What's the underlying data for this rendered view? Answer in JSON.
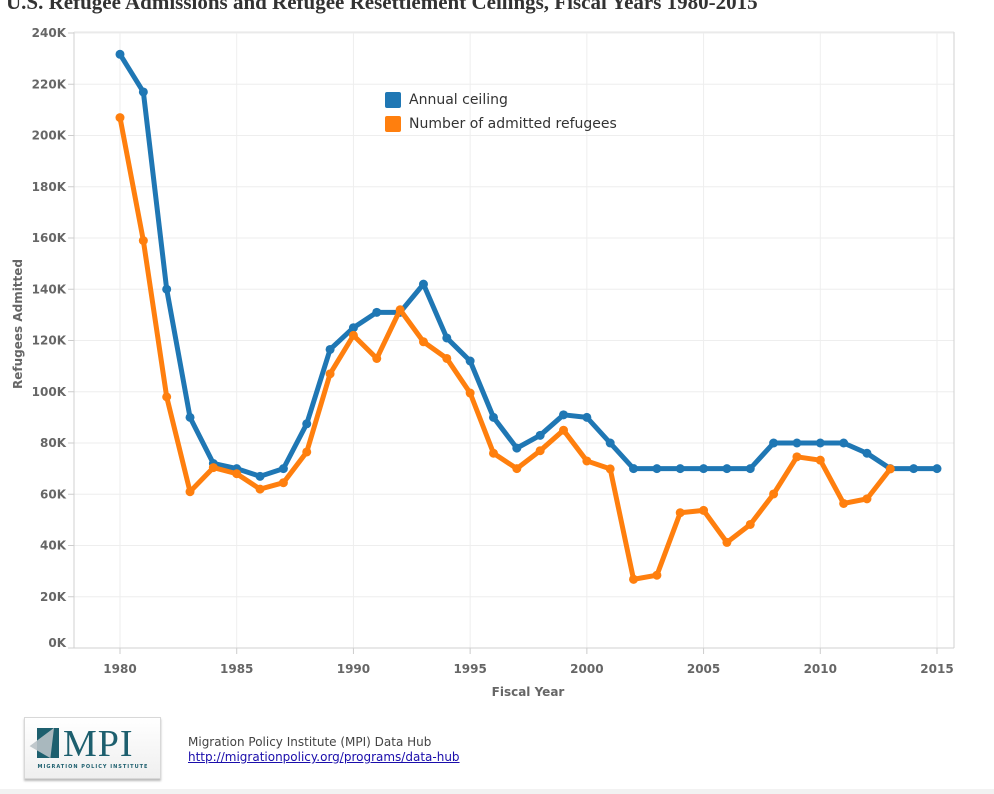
{
  "title": "U.S. Refugee Admissions and Refugee Resettlement Ceilings, Fiscal Years 1980-2015",
  "chart_data": {
    "type": "line",
    "title": "U.S. Refugee Admissions and Refugee Resettlement Ceilings, Fiscal Years 1980-2015",
    "xlabel": "Fiscal Year",
    "ylabel": "Refugees Admitted",
    "xlim": [
      1978,
      2016.5
    ],
    "ylim": [
      0,
      240000
    ],
    "x_ticks": [
      1980,
      1985,
      1990,
      1995,
      2000,
      2005,
      2010,
      2015
    ],
    "y_ticks": [
      0,
      20000,
      40000,
      60000,
      80000,
      100000,
      120000,
      140000,
      160000,
      180000,
      200000,
      220000,
      240000
    ],
    "y_tick_labels": [
      "0K",
      "20K",
      "40K",
      "60K",
      "80K",
      "100K",
      "120K",
      "140K",
      "160K",
      "180K",
      "200K",
      "220K",
      "240K"
    ],
    "grid": true,
    "legend_position": "top-center",
    "series": [
      {
        "name": "Annual ceiling",
        "color": "#1f77b4",
        "x": [
          1980,
          1981,
          1982,
          1983,
          1984,
          1985,
          1986,
          1987,
          1988,
          1989,
          1990,
          1991,
          1992,
          1993,
          1994,
          1995,
          1996,
          1997,
          1998,
          1999,
          2000,
          2001,
          2002,
          2003,
          2004,
          2005,
          2006,
          2007,
          2008,
          2009,
          2010,
          2011,
          2012,
          2013,
          2014,
          2015
        ],
        "values": [
          231700,
          217000,
          140000,
          90000,
          72000,
          70000,
          67000,
          70000,
          87500,
          116500,
          125000,
          131000,
          131000,
          142000,
          121000,
          112000,
          90000,
          78000,
          83000,
          91000,
          90000,
          80000,
          70000,
          70000,
          70000,
          70000,
          70000,
          70000,
          80000,
          80000,
          80000,
          80000,
          76000,
          70000,
          70000,
          70000
        ]
      },
      {
        "name": "Number of admitted refugees",
        "color": "#ff7f0e",
        "x": [
          1980,
          1981,
          1982,
          1983,
          1984,
          1985,
          1986,
          1987,
          1988,
          1989,
          1990,
          1991,
          1992,
          1993,
          1994,
          1995,
          1996,
          1997,
          1998,
          1999,
          2000,
          2001,
          2002,
          2003,
          2004,
          2005,
          2006,
          2007,
          2008,
          2009,
          2010,
          2011,
          2012,
          2013
        ],
        "values": [
          207000,
          159000,
          98000,
          61000,
          70400,
          68000,
          62000,
          64500,
          76500,
          107000,
          122000,
          113000,
          132000,
          119500,
          113000,
          99500,
          76000,
          70000,
          77000,
          85000,
          73000,
          69900,
          26800,
          28400,
          52800,
          53700,
          41200,
          48200,
          60100,
          74600,
          73300,
          56400,
          58200,
          69900
        ]
      }
    ]
  },
  "footer": {
    "logo_text": "MPI",
    "logo_subtitle": "MIGRATION POLICY INSTITUTE",
    "source_line": "Migration Policy Institute (MPI) Data Hub",
    "link_text": "http://migrationpolicy.org/programs/data-hub"
  }
}
